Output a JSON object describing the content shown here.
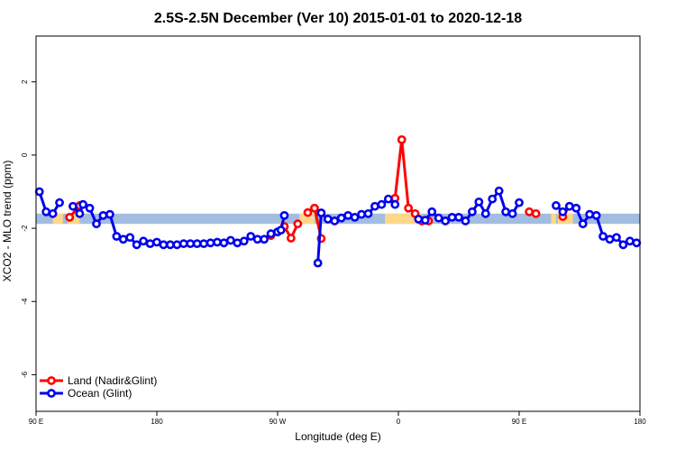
{
  "chart_data": {
    "type": "line",
    "title": "2.5S-2.5N December (Ver 10)   2015-01-01 to 2020-12-18",
    "xlabel": "Longitude (deg E)",
    "ylabel": "XCO2 - MLO trend (ppm)",
    "xlim": [
      90,
      270
    ],
    "ylim": [
      -7.0,
      3.25
    ],
    "x_ticks": [
      {
        "value": 90,
        "label": "90 E"
      },
      {
        "value": 126,
        "label": "180"
      },
      {
        "value": 162,
        "label": "90 W"
      },
      {
        "value": 198,
        "label": "0"
      },
      {
        "value": 234,
        "label": "90 E"
      },
      {
        "value": 270,
        "label": "180"
      }
    ],
    "y_ticks": [
      {
        "value": 2,
        "label": "2"
      },
      {
        "value": 0,
        "label": "0"
      },
      {
        "value": -2,
        "label": "-2"
      },
      {
        "value": -4,
        "label": "-4"
      },
      {
        "value": -6,
        "label": "-6"
      }
    ],
    "reference_bands": [
      {
        "name": "ocean-band",
        "color": "#a3bde0",
        "y_range": [
          -1.88,
          -1.6
        ],
        "x_range": [
          90,
          270
        ]
      },
      {
        "name": "land-band",
        "color": "#fdd78a",
        "y_range": [
          -1.88,
          -1.6
        ],
        "x_segments": [
          [
            95,
            98
          ],
          [
            99.5,
            103
          ],
          [
            168.5,
            173
          ],
          [
            194,
            205
          ],
          [
            243.5,
            245
          ],
          [
            245.5,
            250
          ]
        ]
      }
    ],
    "series": [
      {
        "name": "Land (Nadir&Glint)",
        "color": "#ff0000",
        "segments": [
          [
            [
              100,
              -1.7
            ],
            [
              103,
              -1.38
            ]
          ],
          [
            [
              160,
              -2.2
            ],
            [
              162,
              -2.1
            ],
            [
              164,
              -1.95
            ],
            [
              166,
              -2.27
            ],
            [
              168,
              -1.88
            ]
          ],
          [
            [
              171,
              -1.57
            ],
            [
              173,
              -1.45
            ],
            [
              175,
              -2.28
            ]
          ],
          [
            [
              197,
              -1.18
            ],
            [
              199,
              0.42
            ],
            [
              201,
              -1.45
            ],
            [
              203,
              -1.6
            ],
            [
              205,
              -1.8
            ],
            [
              207,
              -1.8
            ]
          ],
          [
            [
              237,
              -1.55
            ],
            [
              239,
              -1.6
            ]
          ],
          [
            [
              247,
              -1.68
            ],
            [
              249,
              -1.4
            ]
          ]
        ]
      },
      {
        "name": "Ocean (Glint)",
        "color": "#0000ee",
        "segments": [
          [
            [
              91,
              -1.0
            ],
            [
              93,
              -1.55
            ],
            [
              95,
              -1.6
            ],
            [
              97,
              -1.3
            ]
          ],
          [
            [
              101,
              -1.4
            ],
            [
              103,
              -1.6
            ],
            [
              104,
              -1.35
            ],
            [
              106,
              -1.45
            ],
            [
              108,
              -1.88
            ],
            [
              110,
              -1.65
            ],
            [
              112,
              -1.62
            ],
            [
              114,
              -2.22
            ],
            [
              116,
              -2.3
            ],
            [
              118,
              -2.25
            ],
            [
              120,
              -2.45
            ],
            [
              122,
              -2.35
            ],
            [
              124,
              -2.42
            ],
            [
              126,
              -2.38
            ],
            [
              128,
              -2.45
            ],
            [
              130,
              -2.45
            ],
            [
              132,
              -2.45
            ],
            [
              134,
              -2.42
            ],
            [
              136,
              -2.42
            ],
            [
              138,
              -2.42
            ],
            [
              140,
              -2.42
            ],
            [
              142,
              -2.4
            ],
            [
              144,
              -2.38
            ],
            [
              146,
              -2.4
            ],
            [
              148,
              -2.33
            ],
            [
              150,
              -2.4
            ],
            [
              152,
              -2.35
            ],
            [
              154,
              -2.22
            ],
            [
              156,
              -2.3
            ],
            [
              158,
              -2.3
            ],
            [
              160,
              -2.15
            ],
            [
              162,
              -2.1
            ],
            [
              163,
              -2.05
            ],
            [
              164,
              -1.65
            ]
          ],
          [
            [
              174,
              -2.95
            ],
            [
              175,
              -1.58
            ],
            [
              177,
              -1.75
            ],
            [
              179,
              -1.8
            ],
            [
              181,
              -1.72
            ],
            [
              183,
              -1.65
            ],
            [
              185,
              -1.7
            ],
            [
              187,
              -1.62
            ],
            [
              189,
              -1.6
            ],
            [
              191,
              -1.4
            ],
            [
              193,
              -1.35
            ],
            [
              195,
              -1.2
            ],
            [
              197,
              -1.35
            ]
          ],
          [
            [
              204,
              -1.75
            ],
            [
              206,
              -1.78
            ],
            [
              208,
              -1.55
            ],
            [
              210,
              -1.72
            ],
            [
              212,
              -1.8
            ],
            [
              214,
              -1.7
            ],
            [
              216,
              -1.7
            ],
            [
              218,
              -1.8
            ],
            [
              220,
              -1.55
            ],
            [
              222,
              -1.28
            ],
            [
              224,
              -1.6
            ],
            [
              226,
              -1.2
            ],
            [
              228,
              -0.98
            ],
            [
              230,
              -1.55
            ],
            [
              232,
              -1.6
            ],
            [
              234,
              -1.3
            ]
          ],
          [
            [
              245,
              -1.38
            ],
            [
              247,
              -1.55
            ],
            [
              249,
              -1.4
            ],
            [
              251,
              -1.45
            ],
            [
              253,
              -1.88
            ],
            [
              255,
              -1.62
            ],
            [
              257,
              -1.65
            ],
            [
              259,
              -2.22
            ],
            [
              261,
              -2.3
            ],
            [
              263,
              -2.25
            ],
            [
              265,
              -2.45
            ],
            [
              267,
              -2.35
            ],
            [
              269,
              -2.4
            ]
          ]
        ]
      }
    ],
    "legend": {
      "position": "bottom-left",
      "entries": [
        {
          "label": "Land (Nadir&Glint)",
          "color": "#ff0000"
        },
        {
          "label": "Ocean (Glint)",
          "color": "#0000ee"
        }
      ]
    }
  }
}
